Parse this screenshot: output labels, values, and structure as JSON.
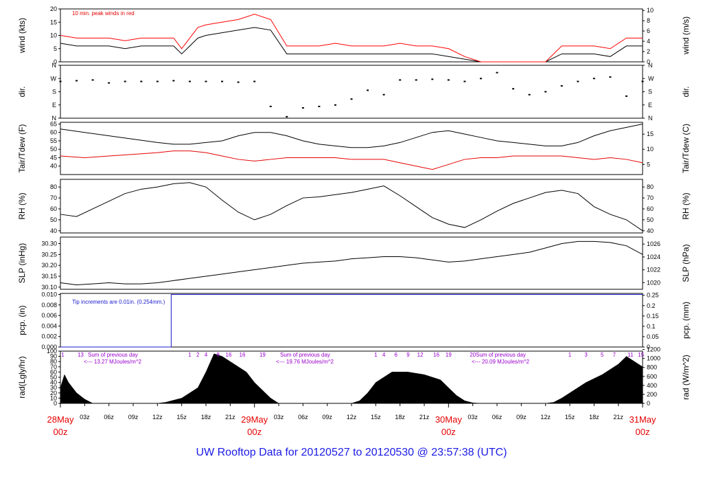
{
  "footer": {
    "text": "UW Rooftop Data for 20120527  to  20120530 @ 23:57:38  (UTC)"
  },
  "x_axis": {
    "hour_ticks": [
      "03z",
      "06z",
      "09z",
      "12z",
      "15z",
      "18z",
      "21z",
      "03z",
      "06z",
      "09z",
      "12z",
      "15z",
      "18z",
      "21z",
      "03z",
      "06z",
      "09z",
      "12z",
      "15z",
      "18z",
      "21z"
    ],
    "day_labels": [
      {
        "line1": "28May",
        "line2": "00z"
      },
      {
        "line1": "29May",
        "line2": "00z"
      },
      {
        "line1": "30May",
        "line2": "00z"
      },
      {
        "line1": "31May",
        "line2": "00z"
      }
    ],
    "range_hours": [
      0,
      72
    ]
  },
  "chart_data": [
    {
      "type": "line",
      "ylabel": "wind (kts)",
      "ylabel_right": "wind (m/s)",
      "ylim": [
        0,
        20
      ],
      "yticks": [
        0,
        5,
        10,
        15,
        20
      ],
      "ylim_right": [
        0,
        10.3
      ],
      "yticks_right": [
        0,
        2,
        4,
        6,
        8,
        10
      ],
      "annotation": "10 min. peak winds in red",
      "series": [
        {
          "color": "#000000",
          "x": [
            0,
            2,
            4,
            6,
            8,
            10,
            12,
            14,
            15,
            16,
            17,
            18,
            20,
            22,
            24,
            26,
            28,
            30,
            32,
            34,
            36,
            38,
            40,
            42,
            44,
            46,
            48,
            50,
            52,
            54,
            56,
            58,
            60,
            62,
            64,
            66,
            68,
            70,
            72
          ],
          "values": [
            7,
            6,
            6,
            6,
            5,
            6,
            6,
            6,
            3,
            6,
            9,
            10,
            11,
            12,
            13,
            12,
            3,
            3,
            3,
            3,
            3,
            3,
            3,
            3,
            3,
            3,
            2,
            1,
            0,
            0,
            0,
            0,
            0,
            3,
            3,
            3,
            2,
            6,
            6
          ]
        },
        {
          "color": "#ff0000",
          "x": [
            0,
            2,
            4,
            6,
            8,
            10,
            12,
            14,
            15,
            16,
            17,
            18,
            20,
            22,
            24,
            26,
            28,
            30,
            32,
            34,
            36,
            38,
            40,
            42,
            44,
            46,
            48,
            50,
            52,
            54,
            56,
            58,
            60,
            62,
            64,
            66,
            68,
            70,
            72
          ],
          "values": [
            10,
            9,
            9,
            9,
            8,
            9,
            9,
            9,
            5,
            9,
            13,
            14,
            15,
            16,
            18,
            16,
            6,
            6,
            6,
            7,
            6,
            6,
            6,
            7,
            6,
            6,
            5,
            2,
            0,
            0,
            0,
            0,
            0,
            6,
            6,
            6,
            5,
            9,
            9
          ]
        }
      ]
    },
    {
      "type": "scatter",
      "ylabel": "dir.",
      "ylabel_right": "dir.",
      "yticks_labels": [
        "N",
        "E",
        "S",
        "W",
        "N"
      ],
      "ylim": [
        0,
        360
      ],
      "series": [
        {
          "color": "#000000",
          "x": [
            0,
            2,
            4,
            6,
            8,
            10,
            12,
            14,
            16,
            18,
            20,
            22,
            24,
            26,
            28,
            30,
            32,
            34,
            36,
            38,
            40,
            42,
            44,
            46,
            48,
            50,
            52,
            54,
            56,
            58,
            60,
            62,
            64,
            66,
            68,
            70,
            72
          ],
          "values": [
            250,
            255,
            260,
            240,
            250,
            250,
            250,
            255,
            250,
            250,
            250,
            245,
            250,
            80,
            10,
            70,
            80,
            90,
            130,
            190,
            160,
            260,
            260,
            265,
            260,
            250,
            270,
            310,
            200,
            160,
            180,
            220,
            250,
            270,
            280,
            150,
            250
          ]
        }
      ]
    },
    {
      "type": "line",
      "ylabel": "Tair/Tdew (F)",
      "ylabel_right": "Tair/Tdew (C)",
      "ylim": [
        35,
        66
      ],
      "yticks": [
        40,
        45,
        50,
        55,
        60,
        65
      ],
      "ylim_right": [
        1.67,
        18.89
      ],
      "yticks_right": [
        5,
        10,
        15
      ],
      "series": [
        {
          "name": "Tair",
          "color": "#000000",
          "x": [
            0,
            3,
            6,
            9,
            12,
            14,
            16,
            18,
            20,
            22,
            24,
            26,
            28,
            30,
            32,
            34,
            36,
            38,
            40,
            42,
            44,
            46,
            48,
            50,
            52,
            54,
            56,
            58,
            60,
            62,
            64,
            66,
            68,
            70,
            72
          ],
          "values": [
            62,
            60,
            58,
            56,
            54,
            53,
            53,
            54,
            55,
            58,
            60,
            60,
            58,
            55,
            53,
            52,
            51,
            51,
            52,
            54,
            57,
            60,
            61,
            59,
            57,
            55,
            54,
            53,
            52,
            52,
            54,
            58,
            61,
            63,
            65
          ]
        },
        {
          "name": "Tdew",
          "color": "#e60000",
          "x": [
            0,
            3,
            6,
            9,
            12,
            14,
            16,
            18,
            20,
            22,
            24,
            26,
            28,
            30,
            32,
            34,
            36,
            38,
            40,
            42,
            44,
            46,
            48,
            50,
            52,
            54,
            56,
            58,
            60,
            62,
            64,
            66,
            68,
            70,
            72
          ],
          "values": [
            46,
            45,
            46,
            47,
            48,
            49,
            49,
            48,
            46,
            44,
            43,
            44,
            45,
            45,
            45,
            45,
            44,
            44,
            44,
            42,
            40,
            38,
            41,
            44,
            45,
            45,
            46,
            46,
            46,
            46,
            45,
            44,
            45,
            44,
            42
          ]
        }
      ]
    },
    {
      "type": "line",
      "ylabel": "RH (%)",
      "ylabel_right": "RH (%)",
      "ylim": [
        38,
        87
      ],
      "yticks": [
        40,
        50,
        60,
        70,
        80
      ],
      "series": [
        {
          "color": "#000000",
          "x": [
            0,
            2,
            4,
            6,
            8,
            10,
            12,
            14,
            16,
            18,
            20,
            22,
            24,
            26,
            28,
            30,
            32,
            34,
            36,
            38,
            40,
            42,
            44,
            46,
            48,
            50,
            52,
            54,
            56,
            58,
            60,
            62,
            64,
            66,
            68,
            70,
            72
          ],
          "values": [
            55,
            53,
            60,
            67,
            74,
            78,
            80,
            83,
            84,
            80,
            68,
            57,
            50,
            55,
            63,
            70,
            71,
            73,
            75,
            78,
            81,
            72,
            62,
            52,
            46,
            43,
            50,
            58,
            65,
            70,
            75,
            77,
            74,
            62,
            55,
            50,
            40
          ]
        }
      ]
    },
    {
      "type": "line",
      "ylabel": "SLP (inHg)",
      "ylabel_right": "SLP (hPa)",
      "ylim": [
        30.09,
        30.33
      ],
      "yticks": [
        30.1,
        30.15,
        30.2,
        30.25,
        30.3
      ],
      "yticks_right": [
        1020,
        1022,
        1024,
        1026
      ],
      "series": [
        {
          "color": "#000000",
          "x": [
            0,
            2,
            4,
            6,
            8,
            10,
            12,
            14,
            16,
            18,
            20,
            22,
            24,
            26,
            28,
            30,
            32,
            34,
            36,
            38,
            40,
            42,
            44,
            46,
            48,
            50,
            52,
            54,
            56,
            58,
            60,
            62,
            64,
            66,
            68,
            70,
            72
          ],
          "values": [
            30.12,
            30.11,
            30.115,
            30.12,
            30.115,
            30.115,
            30.12,
            30.13,
            30.14,
            30.15,
            30.16,
            30.17,
            30.18,
            30.19,
            30.2,
            30.21,
            30.215,
            30.22,
            30.23,
            30.235,
            30.24,
            30.24,
            30.235,
            30.225,
            30.215,
            30.22,
            30.23,
            30.24,
            30.25,
            30.26,
            30.28,
            30.3,
            30.31,
            30.31,
            30.305,
            30.29,
            30.25
          ]
        }
      ]
    },
    {
      "type": "line",
      "ylabel": "pcp. (in)",
      "ylabel_right": "pcp. (mm)",
      "ylim": [
        0,
        0.0102
      ],
      "yticks": [
        0.0,
        0.002,
        0.004,
        0.006,
        0.008,
        0.01
      ],
      "ylim_right": [
        0,
        0.259
      ],
      "yticks_right": [
        0,
        0.05,
        0.1,
        0.15,
        0.2,
        0.25
      ],
      "annotation": "Tip increments are 0.01in. (0.254mm.)",
      "series": [
        {
          "color": "#1a1acc",
          "x": [
            0,
            13.7,
            13.7,
            72
          ],
          "values": [
            0,
            0,
            0.01,
            0.01
          ]
        }
      ]
    },
    {
      "type": "area",
      "ylabel": "rad(Lgly/hr)",
      "ylabel_right": "rad (W/m^2)",
      "ylim": [
        0,
        100
      ],
      "yticks": [
        0,
        10,
        20,
        30,
        40,
        50,
        60,
        70,
        80,
        90,
        100
      ],
      "ylim_right": [
        0,
        1163
      ],
      "yticks_right": [
        0,
        200,
        400,
        600,
        800,
        1000,
        1200
      ],
      "day_totals": [
        {
          "label": "Sum of previous day",
          "value": "<--- 13.27 MJoules/m^2"
        },
        {
          "label": "Sum of previous day",
          "value": "<--- 19.76 MJoules/m^2"
        },
        {
          "label": "Sum of previous day",
          "value": "<--- 20.09 MJoules/m^2"
        }
      ],
      "hour_marks": [
        {
          "x": 0.3,
          "text": "1"
        },
        {
          "x": 2.5,
          "text": "13"
        },
        {
          "x": 16,
          "text": "1"
        },
        {
          "x": 17,
          "text": "2"
        },
        {
          "x": 18,
          "text": "4"
        },
        {
          "x": 19.5,
          "text": "8"
        },
        {
          "x": 20.8,
          "text": "16"
        },
        {
          "x": 22.5,
          "text": "16"
        },
        {
          "x": 25,
          "text": "19"
        },
        {
          "x": 39,
          "text": "1"
        },
        {
          "x": 40,
          "text": "4"
        },
        {
          "x": 41.5,
          "text": "6"
        },
        {
          "x": 43,
          "text": "9"
        },
        {
          "x": 44.5,
          "text": "12"
        },
        {
          "x": 46.5,
          "text": "16"
        },
        {
          "x": 48,
          "text": "19"
        },
        {
          "x": 51,
          "text": "20"
        },
        {
          "x": 63,
          "text": "1"
        },
        {
          "x": 65,
          "text": "3"
        },
        {
          "x": 67,
          "text": "5"
        },
        {
          "x": 68.5,
          "text": "7"
        },
        {
          "x": 70.5,
          "text": "11"
        },
        {
          "x": 71.8,
          "text": "15"
        }
      ],
      "series": [
        {
          "color": "#000000",
          "x": [
            0,
            0.5,
            1,
            2,
            3,
            4,
            12,
            13,
            15,
            17,
            18,
            19,
            20,
            21,
            22,
            23,
            24,
            25,
            26,
            27,
            36,
            37,
            38,
            39,
            41,
            43,
            45,
            47,
            48,
            49,
            50,
            51,
            52,
            60,
            61,
            62,
            63,
            65,
            67,
            69,
            70,
            71,
            72
          ],
          "values": [
            30,
            55,
            40,
            20,
            8,
            0,
            0,
            2,
            10,
            30,
            60,
            95,
            90,
            80,
            70,
            60,
            40,
            25,
            10,
            0,
            0,
            5,
            20,
            40,
            60,
            60,
            55,
            45,
            30,
            15,
            5,
            1,
            0,
            0,
            2,
            10,
            20,
            40,
            55,
            75,
            90,
            80,
            70
          ]
        }
      ]
    }
  ]
}
